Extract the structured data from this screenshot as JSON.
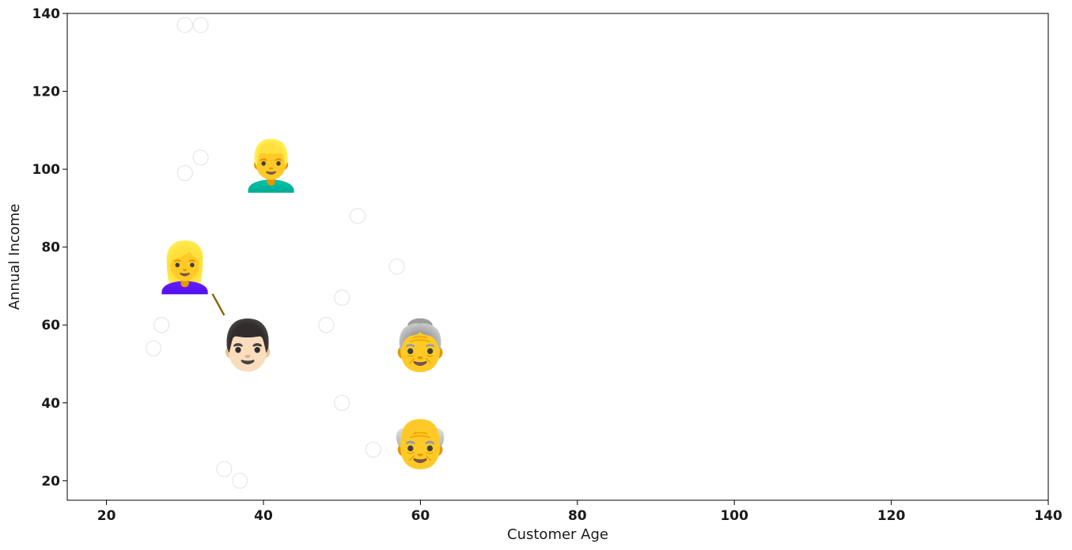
{
  "chart_data": {
    "type": "scatter",
    "title": "",
    "xlabel": "Customer Age",
    "ylabel": "Annual Income",
    "xlim": [
      15,
      140
    ],
    "ylim": [
      15,
      140
    ],
    "xticks": [
      20,
      40,
      60,
      80,
      100,
      120,
      140
    ],
    "yticks": [
      20,
      40,
      60,
      80,
      100,
      120,
      140
    ],
    "grid": false,
    "series": [
      {
        "marker": "faint-circle",
        "color": "#e6e6e6",
        "points": [
          {
            "x": 30,
            "y": 137
          },
          {
            "x": 32,
            "y": 137
          },
          {
            "x": 30,
            "y": 99
          },
          {
            "x": 32,
            "y": 103
          },
          {
            "x": 52,
            "y": 88
          },
          {
            "x": 57,
            "y": 75
          },
          {
            "x": 50,
            "y": 67
          },
          {
            "x": 27,
            "y": 60
          },
          {
            "x": 48,
            "y": 60
          },
          {
            "x": 26,
            "y": 54
          },
          {
            "x": 50,
            "y": 40
          },
          {
            "x": 54,
            "y": 28
          },
          {
            "x": 35,
            "y": 23
          },
          {
            "x": 37,
            "y": 20
          }
        ]
      },
      {
        "marker": "emoji",
        "points": [
          {
            "x": 41,
            "y": 101,
            "icon": "man-blond-emoji",
            "glyph": "👱‍♂️"
          },
          {
            "x": 30,
            "y": 75,
            "icon": "woman-blond-emoji",
            "glyph": "👱‍♀️"
          },
          {
            "x": 38,
            "y": 55,
            "icon": "man-mustache-emoji",
            "glyph": "👨🏻"
          },
          {
            "x": 60,
            "y": 55,
            "icon": "older-woman-emoji",
            "glyph": "👵"
          },
          {
            "x": 60,
            "y": 30,
            "icon": "older-man-emoji",
            "glyph": "👴"
          }
        ]
      }
    ],
    "annotations": [
      {
        "type": "line",
        "from": {
          "x": 33.5,
          "y": 68
        },
        "to": {
          "x": 35,
          "y": 62.5
        },
        "color": "#8a6a10"
      }
    ]
  }
}
